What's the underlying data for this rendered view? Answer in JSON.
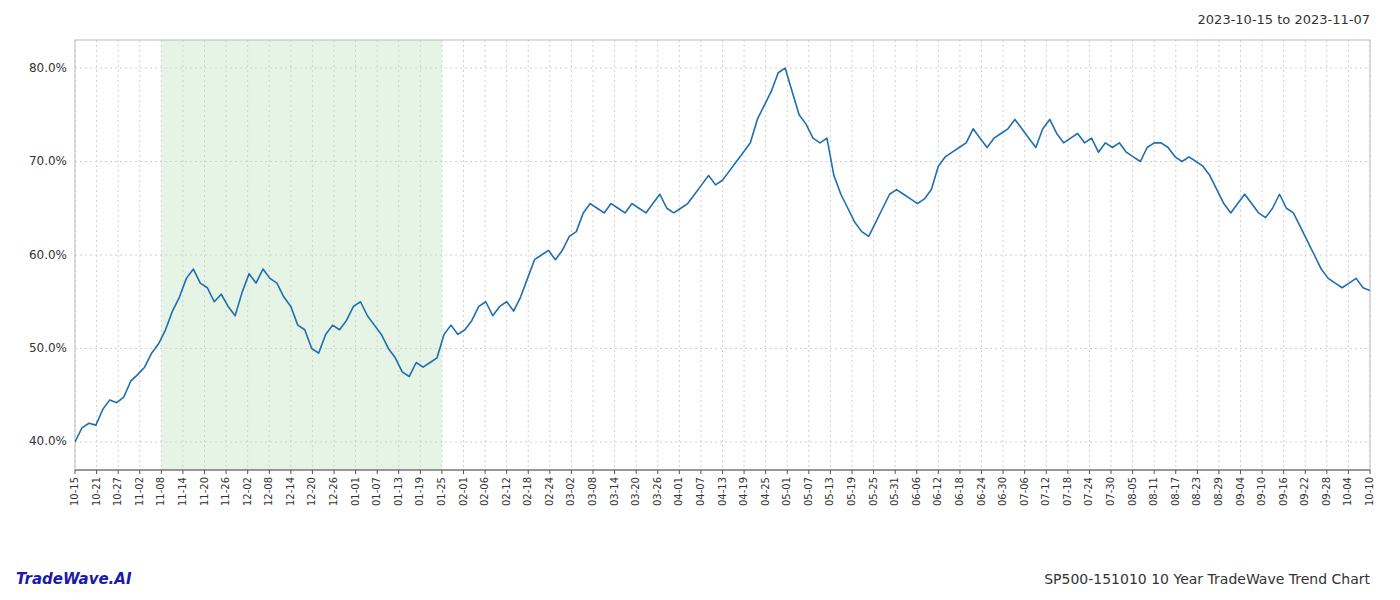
{
  "chart_data": {
    "type": "line",
    "title": "SP500-151010 10 Year TradeWave Trend Chart",
    "subtitle": "2023-10-15 to 2023-11-07",
    "annotations": [
      "TradeWave.AI"
    ],
    "color": "#1f6eb0",
    "grid": true,
    "span": {
      "start": 12.4,
      "end": 52.7,
      "color": "#d4ecd4"
    },
    "xlim": [
      0,
      186
    ],
    "xticks": [
      {
        "value": 0,
        "label": "10-15"
      },
      {
        "value": 3.1,
        "label": "10-21"
      },
      {
        "value": 6.2,
        "label": "10-27"
      },
      {
        "value": 9.3,
        "label": "11-02"
      },
      {
        "value": 12.4,
        "label": "11-08"
      },
      {
        "value": 15.5,
        "label": "11-14"
      },
      {
        "value": 18.6,
        "label": "11-20"
      },
      {
        "value": 21.7,
        "label": "11-26"
      },
      {
        "value": 24.8,
        "label": "12-02"
      },
      {
        "value": 27.9,
        "label": "12-08"
      },
      {
        "value": 31,
        "label": "12-14"
      },
      {
        "value": 34.1,
        "label": "12-20"
      },
      {
        "value": 37.2,
        "label": "12-26"
      },
      {
        "value": 40.3,
        "label": "01-01"
      },
      {
        "value": 43.4,
        "label": "01-07"
      },
      {
        "value": 46.5,
        "label": "01-13"
      },
      {
        "value": 49.6,
        "label": "01-19"
      },
      {
        "value": 52.7,
        "label": "01-25"
      },
      {
        "value": 55.8,
        "label": "02-01"
      },
      {
        "value": 58.9,
        "label": "02-06"
      },
      {
        "value": 62,
        "label": "02-12"
      },
      {
        "value": 65.1,
        "label": "02-18"
      },
      {
        "value": 68.2,
        "label": "02-24"
      },
      {
        "value": 71.3,
        "label": "03-02"
      },
      {
        "value": 74.4,
        "label": "03-08"
      },
      {
        "value": 77.5,
        "label": "03-14"
      },
      {
        "value": 80.6,
        "label": "03-20"
      },
      {
        "value": 83.7,
        "label": "03-26"
      },
      {
        "value": 86.8,
        "label": "04-01"
      },
      {
        "value": 89.9,
        "label": "04-07"
      },
      {
        "value": 93,
        "label": "04-13"
      },
      {
        "value": 96.1,
        "label": "04-19"
      },
      {
        "value": 99.2,
        "label": "04-25"
      },
      {
        "value": 102.3,
        "label": "05-01"
      },
      {
        "value": 105.4,
        "label": "05-07"
      },
      {
        "value": 108.5,
        "label": "05-13"
      },
      {
        "value": 111.6,
        "label": "05-19"
      },
      {
        "value": 114.7,
        "label": "05-25"
      },
      {
        "value": 117.8,
        "label": "05-31"
      },
      {
        "value": 120.9,
        "label": "06-06"
      },
      {
        "value": 124,
        "label": "06-12"
      },
      {
        "value": 127.1,
        "label": "06-18"
      },
      {
        "value": 130.2,
        "label": "06-24"
      },
      {
        "value": 133.3,
        "label": "06-30"
      },
      {
        "value": 136.4,
        "label": "07-06"
      },
      {
        "value": 139.5,
        "label": "07-12"
      },
      {
        "value": 142.6,
        "label": "07-18"
      },
      {
        "value": 145.7,
        "label": "07-24"
      },
      {
        "value": 148.8,
        "label": "07-30"
      },
      {
        "value": 151.9,
        "label": "08-05"
      },
      {
        "value": 155,
        "label": "08-11"
      },
      {
        "value": 158.1,
        "label": "08-17"
      },
      {
        "value": 161.2,
        "label": "08-23"
      },
      {
        "value": 164.3,
        "label": "08-29"
      },
      {
        "value": 167.4,
        "label": "09-04"
      },
      {
        "value": 170.5,
        "label": "09-10"
      },
      {
        "value": 173.6,
        "label": "09-16"
      },
      {
        "value": 176.7,
        "label": "09-22"
      },
      {
        "value": 179.8,
        "label": "09-28"
      },
      {
        "value": 182.9,
        "label": "10-04"
      },
      {
        "value": 186,
        "label": "10-10"
      }
    ],
    "ylim": [
      37.0,
      83.0
    ],
    "yticks": [
      {
        "value": 40.0,
        "label": "40.0%"
      },
      {
        "value": 50.0,
        "label": "50.0%"
      },
      {
        "value": 60.0,
        "label": "60.0%"
      },
      {
        "value": 70.0,
        "label": "70.0%"
      },
      {
        "value": 80.0,
        "label": "80.0%"
      }
    ],
    "x": [
      0,
      1,
      2,
      3,
      4,
      5,
      6,
      7,
      8,
      9,
      10,
      11,
      12,
      13,
      14,
      15,
      16,
      17,
      18,
      19,
      20,
      21,
      22,
      23,
      24,
      25,
      26,
      27,
      28,
      29,
      30,
      31,
      32,
      33,
      34,
      35,
      36,
      37,
      38,
      39,
      40,
      41,
      42,
      43,
      44,
      45,
      46,
      47,
      48,
      49,
      50,
      51,
      52,
      53,
      54,
      55,
      56,
      57,
      58,
      59,
      60,
      61,
      62,
      63,
      64,
      65,
      66,
      67,
      68,
      69,
      70,
      71,
      72,
      73,
      74,
      75,
      76,
      77,
      78,
      79,
      80,
      81,
      82,
      83,
      84,
      85,
      86,
      87,
      88,
      89,
      90,
      91,
      92,
      93,
      94,
      95,
      96,
      97,
      98,
      99,
      100,
      101,
      102,
      103,
      104,
      105,
      106,
      107,
      108,
      109,
      110,
      111,
      112,
      113,
      114,
      115,
      116,
      117,
      118,
      119,
      120,
      121,
      122,
      123,
      124,
      125,
      126,
      127,
      128,
      129,
      130,
      131,
      132,
      133,
      134,
      135,
      136,
      137,
      138,
      139,
      140,
      141,
      142,
      143,
      144,
      145,
      146,
      147,
      148,
      149,
      150,
      151,
      152,
      153,
      154,
      155,
      156,
      157,
      158,
      159,
      160,
      161,
      162,
      163,
      164,
      165,
      166,
      167,
      168,
      169,
      170,
      171,
      172,
      173,
      174,
      175,
      176,
      177,
      178,
      179,
      180,
      181,
      182,
      183,
      184,
      185,
      186
    ],
    "values": [
      40.0,
      41.5,
      42.0,
      41.8,
      43.5,
      44.5,
      44.2,
      44.8,
      46.5,
      47.2,
      48.0,
      49.5,
      50.5,
      52.0,
      54.0,
      55.5,
      57.5,
      58.5,
      57.0,
      56.5,
      55.0,
      55.8,
      54.5,
      53.5,
      56.0,
      58.0,
      57.0,
      58.5,
      57.5,
      57.0,
      55.5,
      54.5,
      52.5,
      52.0,
      50.0,
      49.5,
      51.5,
      52.5,
      52.0,
      53.0,
      54.5,
      55.0,
      53.5,
      52.5,
      51.5,
      50.0,
      49.0,
      47.5,
      47.0,
      48.5,
      48.0,
      48.5,
      49.0,
      51.5,
      52.5,
      51.5,
      52.0,
      53.0,
      54.5,
      55.0,
      53.5,
      54.5,
      55.0,
      54.0,
      55.5,
      57.5,
      59.5,
      60.0,
      60.5,
      59.5,
      60.5,
      62.0,
      62.5,
      64.5,
      65.5,
      65.0,
      64.5,
      65.5,
      65.0,
      64.5,
      65.5,
      65.0,
      64.5,
      65.5,
      66.5,
      65.0,
      64.5,
      65.0,
      65.5,
      66.5,
      67.5,
      68.5,
      67.5,
      68.0,
      69.0,
      70.0,
      71.0,
      72.0,
      74.5,
      76.0,
      77.5,
      79.5,
      80.0,
      77.5,
      75.0,
      74.0,
      72.5,
      72.0,
      72.5,
      68.5,
      66.5,
      65.0,
      63.5,
      62.5,
      62.0,
      63.5,
      65.0,
      66.5,
      67.0,
      66.5,
      66.0,
      65.5,
      66.0,
      67.0,
      69.5,
      70.5,
      71.0,
      71.5,
      72.0,
      73.5,
      72.5,
      71.5,
      72.5,
      73.0,
      73.5,
      74.5,
      73.5,
      72.5,
      71.5,
      73.5,
      74.5,
      73.0,
      72.0,
      72.5,
      73.0,
      72.0,
      72.5,
      71.0,
      72.0,
      71.5,
      72.0,
      71.0,
      70.5,
      70.0,
      71.5,
      72.0,
      72.0,
      71.5,
      70.5,
      70.0,
      70.5,
      70.0,
      69.5,
      68.5,
      67.0,
      65.5,
      64.5,
      65.5,
      66.5,
      65.5,
      64.5,
      64.0,
      65.0,
      66.5,
      65.0,
      64.5,
      63.0,
      61.5,
      60.0,
      58.5,
      57.5,
      57.0,
      56.5,
      57.0,
      57.5,
      56.5,
      56.2
    ]
  }
}
